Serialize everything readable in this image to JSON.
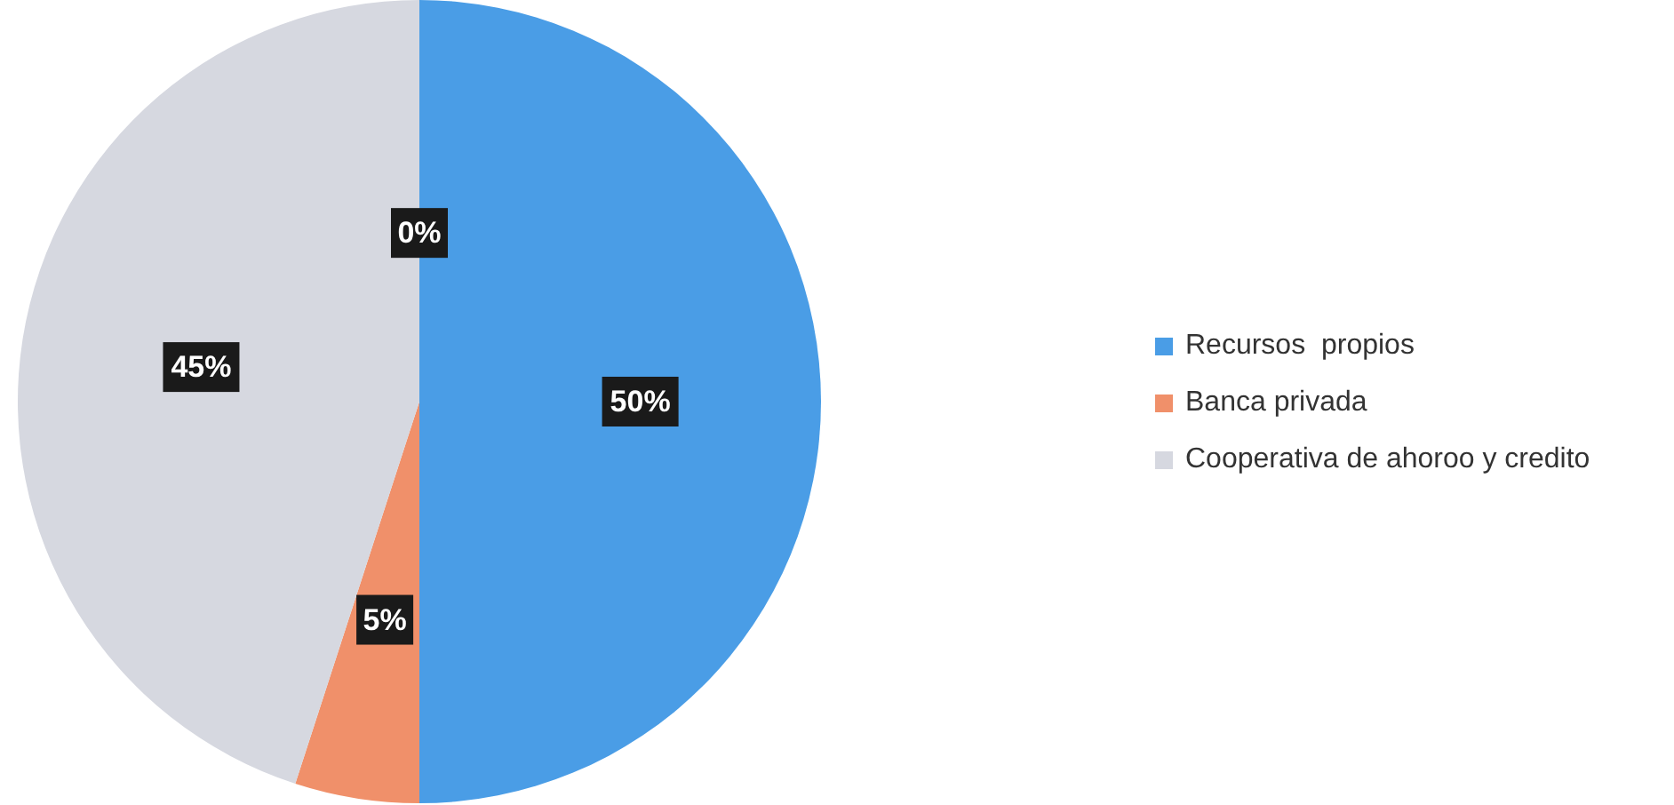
{
  "chart_data": {
    "type": "pie",
    "categories": [
      "Recursos  propios",
      "Banca privada",
      "Cooperativa de ahoroo y credito",
      null
    ],
    "values": [
      50,
      5,
      45,
      0
    ],
    "colors": [
      "#4a9de6",
      "#f0906a",
      "#d6d8e0",
      "#b0b0b0"
    ],
    "value_labels": [
      "50%",
      "5%",
      "45%",
      "0%"
    ],
    "legend": "right"
  }
}
